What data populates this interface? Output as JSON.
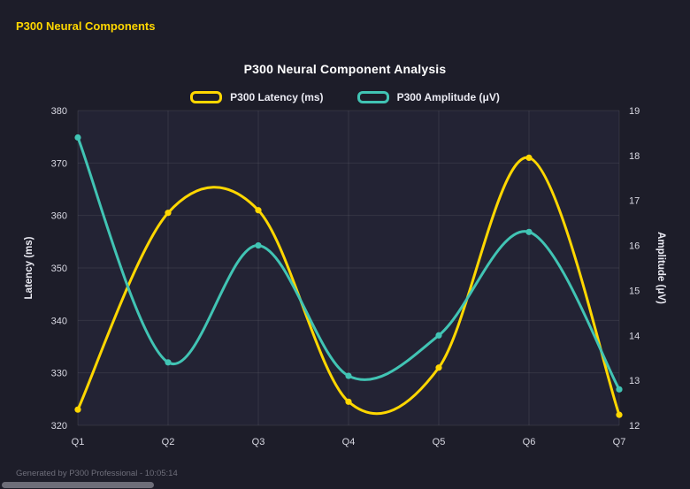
{
  "page": {
    "header": "P300 Neural Components",
    "footer": "Generated by P300 Professional - 10:05:14"
  },
  "colors": {
    "background": "#1d1d29",
    "plot_background": "#232334",
    "grid": "rgba(255,255,255,0.08)",
    "tick_text": "#d9d9e3",
    "axis_title_text": "#eaeaf2",
    "accent_yellow": "#ffd700",
    "accent_teal": "#41c4b4",
    "muted": "#6e6e7a"
  },
  "chart_data": {
    "type": "line",
    "title": "P300 Neural Component Analysis",
    "categories": [
      "Q1",
      "Q2",
      "Q3",
      "Q4",
      "Q5",
      "Q6",
      "Q7"
    ],
    "series": [
      {
        "name": "P300 Latency (ms)",
        "axis": "left",
        "color": "#ffd700",
        "values": [
          323,
          360.5,
          361,
          324.5,
          331,
          371,
          322
        ]
      },
      {
        "name": "P300 Amplitude (μV)",
        "axis": "right",
        "color": "#41c4b4",
        "values": [
          18.4,
          13.4,
          16.0,
          13.1,
          14.0,
          16.3,
          12.8
        ]
      }
    ],
    "left_axis": {
      "label": "Latency (ms)",
      "min": 320,
      "max": 380,
      "step": 10
    },
    "right_axis": {
      "label": "Amplitude (μV)",
      "min": 12,
      "max": 19,
      "step": 1
    },
    "grid": true,
    "smooth": true,
    "legend_position": "top"
  }
}
